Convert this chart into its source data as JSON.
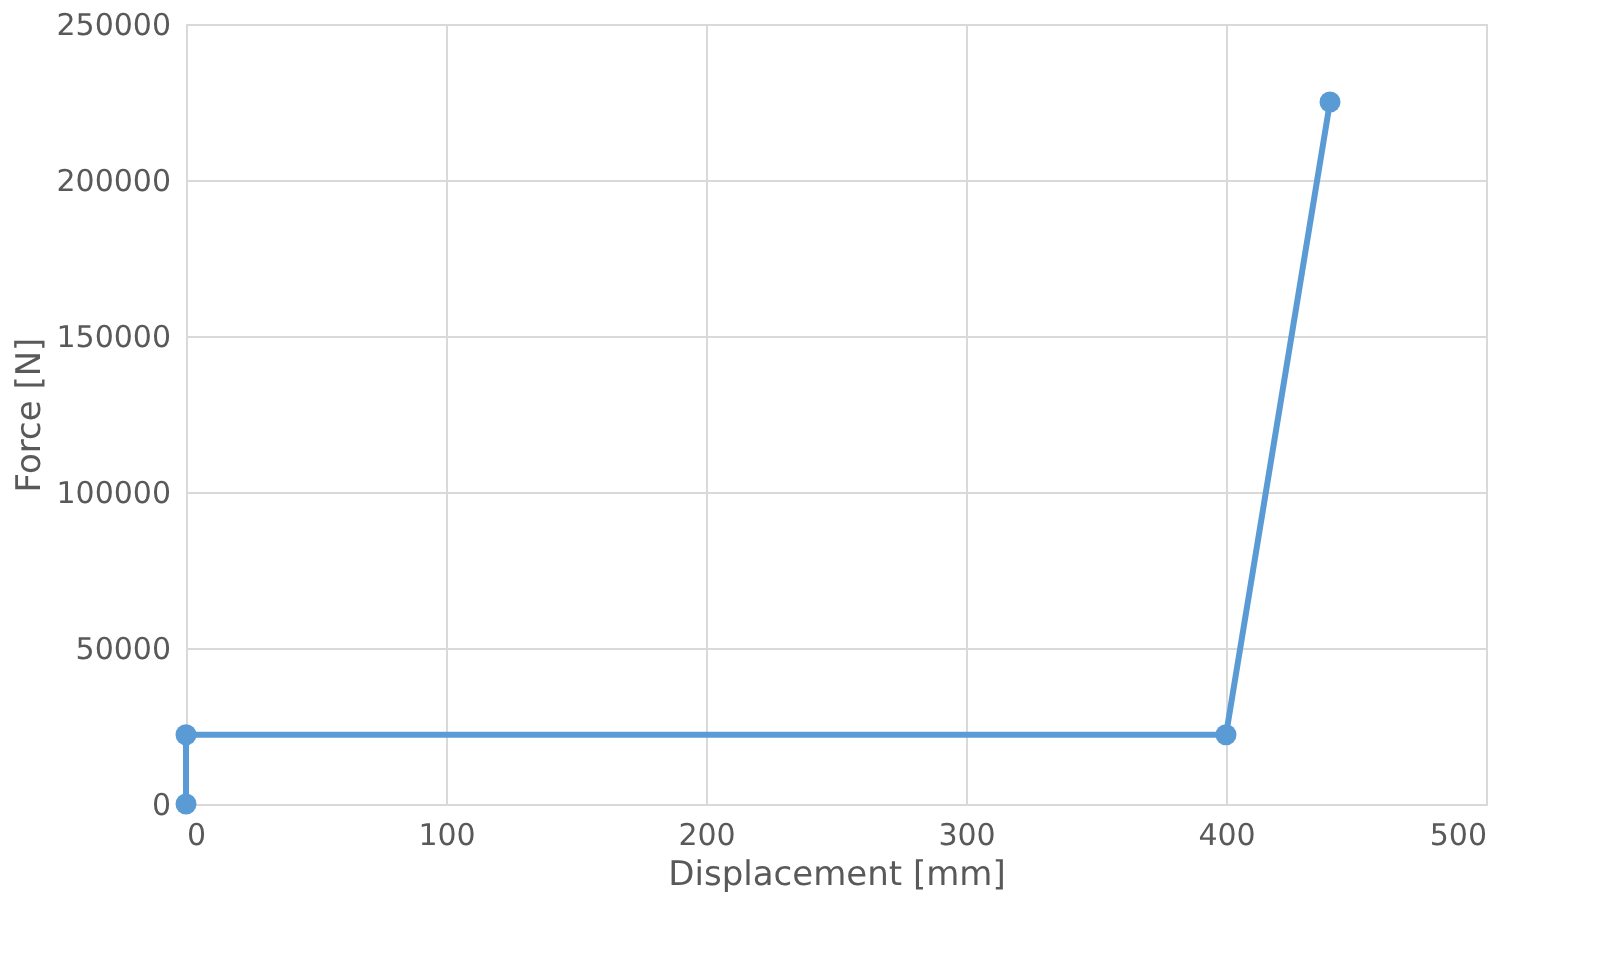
{
  "chart_data": {
    "type": "line",
    "xlabel": "Displacement [mm]",
    "ylabel": "Force [N]",
    "series": [
      {
        "color": "#5b9bd5",
        "x": [
          0,
          0,
          400,
          440
        ],
        "values": [
          0,
          22200,
          22200,
          225000
        ]
      }
    ],
    "xlim": [
      0,
      500
    ],
    "xticks": [
      0,
      100,
      200,
      300,
      400,
      500
    ],
    "ylim": [
      0,
      250000
    ],
    "yticks": [
      0,
      50000,
      100000,
      150000,
      200000,
      250000
    ],
    "grid": true,
    "marker": "circle",
    "line_style": "solid"
  }
}
